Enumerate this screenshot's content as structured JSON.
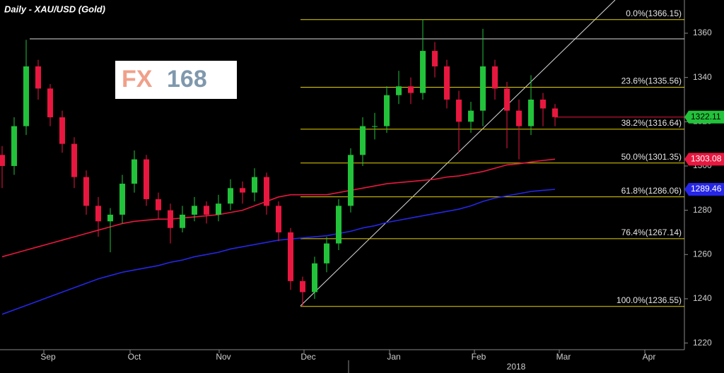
{
  "chart_data": {
    "type": "candlestick",
    "title": "Daily - XAU/USD (Gold)",
    "logo": [
      "FX",
      "168"
    ],
    "open": [
      1305,
      1300,
      1318,
      1345,
      1335,
      1322,
      1310,
      1295,
      1282,
      1275,
      1278,
      1292,
      1303,
      1285,
      1280,
      1272,
      1278,
      1282,
      1278,
      1283,
      1290,
      1288,
      1295,
      1282,
      1270,
      1248,
      1243,
      1256,
      1265,
      1282,
      1305,
      1318,
      1318,
      1332,
      1336,
      1333,
      1352,
      1345,
      1330,
      1320,
      1325,
      1345,
      1335,
      1325,
      1318,
      1330,
      1326
    ],
    "high": [
      1309,
      1322,
      1357,
      1348,
      1337,
      1325,
      1313,
      1298,
      1286,
      1281,
      1296,
      1307,
      1305,
      1288,
      1283,
      1282,
      1286,
      1284,
      1287,
      1294,
      1293,
      1299,
      1297,
      1284,
      1272,
      1250,
      1259,
      1268,
      1285,
      1308,
      1322,
      1324,
      1336,
      1343,
      1340,
      1366.15,
      1356,
      1348,
      1334,
      1329,
      1362,
      1348,
      1338,
      1330,
      1341,
      1333,
      1328
    ],
    "low": [
      1290,
      1296,
      1314,
      1330,
      1318,
      1306,
      1290,
      1278,
      1268,
      1261,
      1274,
      1288,
      1282,
      1276,
      1265,
      1270,
      1275,
      1274,
      1275,
      1280,
      1283,
      1284,
      1278,
      1266,
      1244,
      1236.55,
      1240,
      1252,
      1262,
      1279,
      1300,
      1312,
      1315,
      1328,
      1328,
      1330,
      1340,
      1326,
      1306,
      1315,
      1318,
      1330,
      1308,
      1303,
      1314,
      1318,
      1318
    ],
    "close": [
      1300,
      1318,
      1345,
      1335,
      1322,
      1310,
      1295,
      1282,
      1275,
      1278,
      1292,
      1303,
      1285,
      1280,
      1272,
      1278,
      1282,
      1278,
      1283,
      1290,
      1288,
      1295,
      1282,
      1270,
      1248,
      1243,
      1256,
      1265,
      1282,
      1305,
      1318,
      1318,
      1332,
      1336,
      1333,
      1352,
      1345,
      1330,
      1320,
      1325,
      1345,
      1335,
      1325,
      1318,
      1330,
      1326,
      1322.11
    ],
    "up_color": "#22c23a",
    "down_color": "#e8173f",
    "series": [
      {
        "color": "#e8173f",
        "values": [
          1259,
          1260.5,
          1262,
          1263.5,
          1265,
          1266.5,
          1268,
          1269.5,
          1271,
          1272.5,
          1274,
          1275,
          1275.5,
          1276,
          1276,
          1276.5,
          1277,
          1277.5,
          1278,
          1279,
          1280,
          1282,
          1284,
          1286,
          1287,
          1287,
          1287,
          1287,
          1288,
          1289,
          1290,
          1291,
          1292,
          1292.5,
          1293,
          1293.5,
          1294,
          1295,
          1295.5,
          1296.5,
          1297.5,
          1299,
          1300.5,
          1301,
          1301.8,
          1302.5,
          1303.08
        ]
      },
      {
        "color": "#2626e8",
        "values": [
          1233,
          1235,
          1237,
          1239,
          1241,
          1243,
          1245,
          1247,
          1249,
          1250.5,
          1252,
          1253,
          1254,
          1255,
          1256.5,
          1257.5,
          1259,
          1260,
          1261,
          1262.5,
          1263.5,
          1264.5,
          1265.5,
          1266.5,
          1267,
          1267.5,
          1268,
          1268.5,
          1269.5,
          1270.5,
          1272,
          1273,
          1274.5,
          1275.5,
          1276.5,
          1277.5,
          1278.5,
          1279.5,
          1280.5,
          1282,
          1284,
          1285.5,
          1286.5,
          1287.5,
          1288.5,
          1289,
          1289.46
        ]
      }
    ],
    "fib_color": "#e6d200",
    "fib_levels": [
      {
        "value": 1366.15,
        "label": "0.0%(1366.15)"
      },
      {
        "value": 1335.56,
        "label": "23.6%(1335.56)"
      },
      {
        "value": 1316.64,
        "label": "38.2%(1316.64)"
      },
      {
        "value": 1301.35,
        "label": "50.0%(1301.35)"
      },
      {
        "value": 1286.06,
        "label": "61.8%(1286.06)"
      },
      {
        "value": 1267.14,
        "label": "76.4%(1267.14)"
      },
      {
        "value": 1236.55,
        "label": "100.0%(1236.55)"
      }
    ],
    "x_labels": [
      "Sep",
      "Oct",
      "Nov",
      "Dec",
      "Jan",
      "Feb",
      "Mar",
      "Apr"
    ],
    "year_label": "2018",
    "ylim": [
      1217,
      1375
    ],
    "yticks": [
      1220,
      1240,
      1260,
      1280,
      1300,
      1320,
      1340,
      1360
    ]
  }
}
